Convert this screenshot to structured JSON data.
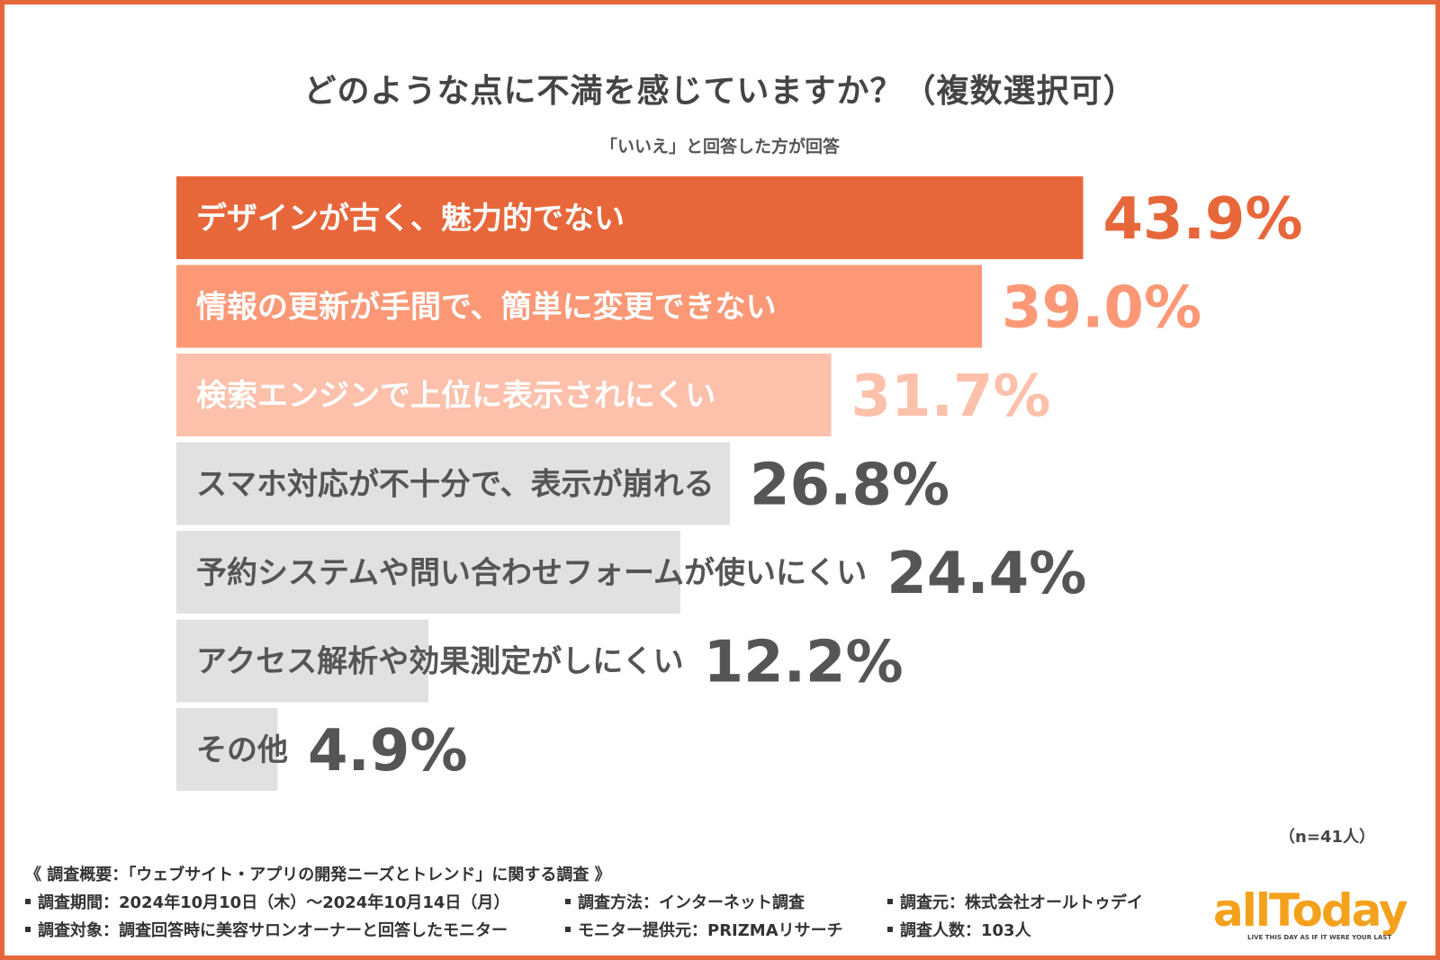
{
  "chart_data": {
    "type": "bar",
    "orientation": "horizontal",
    "title": "どのような点に不満を感じていますか？（複数選択可）",
    "subtitle": "「いいえ」と回答した方が回答",
    "categories": [
      "デザインが古く、魅力的でない",
      "情報の更新が手間で、簡単に変更できない",
      "検索エンジンで上位に表示されにくい",
      "スマホ対応が不十分で、表示が崩れる",
      "予約システムや問い合わせフォームが使いにくい",
      "アクセス解析や効果測定がしにくい",
      "その他"
    ],
    "values": [
      43.9,
      39.0,
      31.7,
      26.8,
      24.4,
      12.2,
      4.9
    ],
    "value_labels": [
      "43.9%",
      "39.0%",
      "31.7%",
      "26.8%",
      "24.4%",
      "12.2%",
      "4.9%"
    ],
    "unit": "%",
    "bar_colors": [
      "#e8673a",
      "#fc9876",
      "#fdc0aa",
      "#e1e1e1",
      "#e1e1e1",
      "#e1e1e1",
      "#e1e1e1"
    ],
    "label_colors": [
      "#ffffff",
      "#ffffff",
      "#ffffff",
      "#555555",
      "#555555",
      "#555555",
      "#555555"
    ],
    "value_colors": [
      "#e8673a",
      "#fc9876",
      "#fdc0aa",
      "#555555",
      "#555555",
      "#555555",
      "#555555"
    ],
    "grid": false,
    "legend": "none"
  },
  "note": "（n=41人）",
  "footer": {
    "overview": "《 調査概要：「ウェブサイト・アプリの開発ニーズとトレンド」に関する調査 》",
    "period": "調査期間：2024年10月10日（木）〜2024年10月14日（月）",
    "method": "調査方法：インターネット調査",
    "source": "調査元：株式会社オールトゥデイ",
    "target": "調査対象：調査回答時に美容サロンオーナーと回答したモニター",
    "provider": "モニター提供元：PRIZMAリサーチ",
    "count": "調査人数：103人"
  },
  "logo": {
    "text": "allToday",
    "tagline": "LIVE THIS DAY AS IF IT WERE YOUR LAST"
  }
}
